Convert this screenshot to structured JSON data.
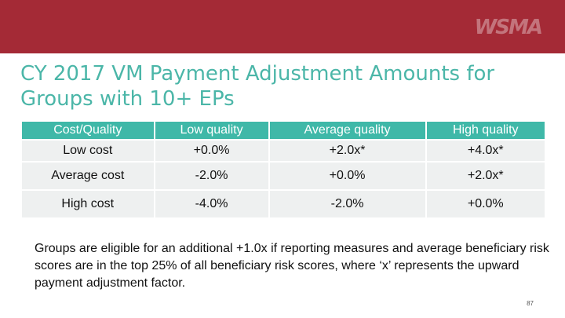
{
  "header": {
    "logo_text": "WSMA",
    "title": "CY 2017 VM Payment Adjustment Amounts for Groups with 10+ EPs"
  },
  "table": {
    "columns": [
      "Cost/Quality",
      "Low quality",
      "Average quality",
      "High quality"
    ],
    "rows": [
      [
        "Low cost",
        "+0.0%",
        "+2.0x*",
        "+4.0x*"
      ],
      [
        "Average cost",
        "-2.0%",
        "+0.0%",
        "+2.0x*"
      ],
      [
        "High cost",
        "-4.0%",
        "-2.0%",
        "+0.0%"
      ]
    ]
  },
  "note": "Groups are eligible for an additional +1.0x if reporting measures and average beneficiary risk scores are in the top 25% of all beneficiary risk scores, where ‘x’ represents the upward payment adjustment factor.",
  "page_number": "87",
  "colors": {
    "banner": "#a42a36",
    "accent": "#3fb8a8",
    "title": "#4bb6a8"
  }
}
